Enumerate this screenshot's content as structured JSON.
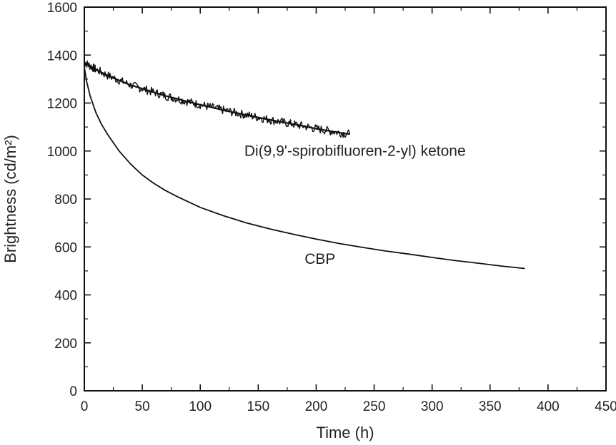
{
  "chart_data": {
    "type": "line",
    "xlabel": "Time (h)",
    "ylabel": "Brightness (cd/m²)",
    "xlim": [
      0,
      450
    ],
    "ylim": [
      0,
      1600
    ],
    "x_ticks": [
      0,
      50,
      100,
      150,
      200,
      250,
      300,
      350,
      400,
      450
    ],
    "x_tick_labels": [
      "0",
      "50",
      "100",
      "150",
      "200",
      "250",
      "300",
      "350",
      "400",
      "450"
    ],
    "y_ticks": [
      0,
      200,
      400,
      600,
      800,
      1000,
      1200,
      1400,
      1600
    ],
    "y_tick_labels": [
      "0",
      "200",
      "400",
      "600",
      "800",
      "1000",
      "1200",
      "1400",
      "1600"
    ],
    "grid": false,
    "series": [
      {
        "name": "Di(9,9'-spirobifluoren-2-yl) ketone",
        "noisy": true,
        "x": [
          0,
          5,
          10,
          20,
          30,
          40,
          50,
          60,
          70,
          80,
          90,
          100,
          110,
          120,
          130,
          140,
          150,
          160,
          170,
          180,
          190,
          200,
          210,
          220,
          229
        ],
        "y": [
          1370,
          1355,
          1340,
          1315,
          1295,
          1275,
          1260,
          1245,
          1230,
          1218,
          1205,
          1193,
          1182,
          1170,
          1160,
          1150,
          1140,
          1130,
          1121,
          1112,
          1103,
          1093,
          1085,
          1077,
          1070
        ]
      },
      {
        "name": "CBP",
        "noisy": false,
        "x": [
          0,
          2,
          5,
          10,
          15,
          20,
          30,
          40,
          50,
          60,
          70,
          80,
          100,
          120,
          140,
          160,
          180,
          200,
          220,
          240,
          260,
          280,
          300,
          320,
          340,
          360,
          380
        ],
        "y": [
          1350,
          1290,
          1230,
          1160,
          1110,
          1070,
          1000,
          945,
          900,
          865,
          835,
          810,
          765,
          730,
          700,
          675,
          653,
          633,
          614,
          598,
          583,
          570,
          556,
          543,
          532,
          520,
          510
        ]
      }
    ]
  }
}
